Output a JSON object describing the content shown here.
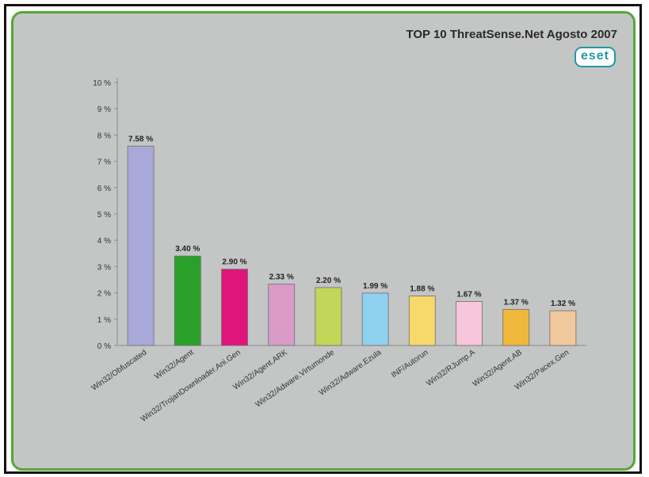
{
  "chart_data": {
    "type": "bar",
    "title": "TOP 10 ThreatSense.Net Agosto 2007",
    "logo": "eset",
    "categories": [
      "Win32/Obfuscated",
      "Win32/Agent",
      "Win32/TrojanDownloader.Ani.Gen",
      "Win32/Agent.ARK",
      "Win32/Adware.Virtumonde",
      "Win32/Adware.Ezula",
      "INF/Autorun",
      "Win32/RJump.A",
      "Win32/Agent.AB",
      "Win32/Pacex.Gen"
    ],
    "values": [
      7.58,
      3.4,
      2.9,
      2.33,
      2.2,
      1.99,
      1.88,
      1.67,
      1.37,
      1.32
    ],
    "value_labels": [
      "7.58 %",
      "3.40 %",
      "2.90 %",
      "2.33 %",
      "2.20 %",
      "1.99 %",
      "1.88 %",
      "1.67 %",
      "1.37 %",
      "1.32 %"
    ],
    "colors": [
      "#a9a9d9",
      "#2aa02a",
      "#e0157a",
      "#d99cc8",
      "#c2d65a",
      "#8fd0ee",
      "#f7d86a",
      "#f7c6dc",
      "#f0b83a",
      "#efc89c"
    ],
    "yticks": [
      "0 %",
      "1 %",
      "2 %",
      "3 %",
      "4 %",
      "5 %",
      "6 %",
      "7 %",
      "8 %",
      "9 %",
      "10 %"
    ],
    "ylim": [
      0,
      10
    ],
    "grid": false,
    "xlabel": "",
    "ylabel": ""
  }
}
